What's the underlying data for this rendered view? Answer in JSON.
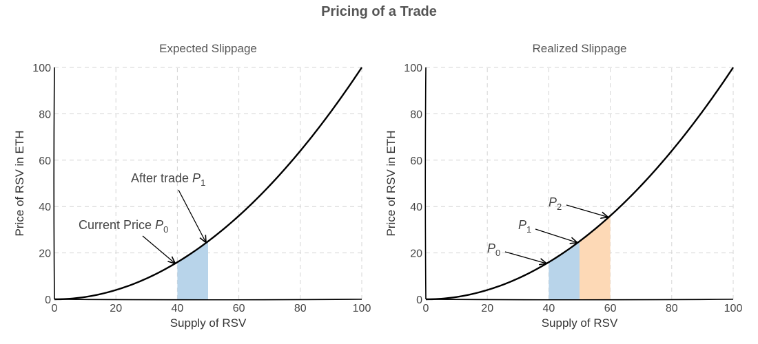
{
  "figure": {
    "title": "Pricing of a Trade"
  },
  "chart_data": [
    {
      "type": "line",
      "title": "Expected Slippage",
      "xlabel": "Supply of RSV",
      "ylabel": "Price of RSV in ETH",
      "xlim": [
        0,
        100
      ],
      "ylim": [
        0,
        100
      ],
      "xticks": [
        "0",
        "20",
        "40",
        "60",
        "80",
        "100"
      ],
      "yticks": [
        "0",
        "20",
        "40",
        "60",
        "80",
        "100"
      ],
      "grid": true,
      "series": [
        {
          "function": "y = x^2 / 100",
          "x": [
            0,
            10,
            20,
            30,
            40,
            50,
            60,
            70,
            80,
            90,
            100
          ],
          "values": [
            0,
            1,
            4,
            9,
            16,
            25,
            36,
            49,
            64,
            81,
            100
          ]
        }
      ],
      "shaded_regions": [
        {
          "x_from": 40,
          "x_to": 50,
          "color": "#b8d4ea"
        }
      ],
      "annotations": [
        {
          "label": "Current Price ",
          "symbol": "P",
          "sub": "0",
          "point": [
            40,
            16
          ]
        },
        {
          "label": "After trade ",
          "symbol": "P",
          "sub": "1",
          "point": [
            50,
            25
          ]
        }
      ]
    },
    {
      "type": "line",
      "title": "Realized Slippage",
      "xlabel": "Supply of RSV",
      "ylabel": "Price of RSV in ETH",
      "xlim": [
        0,
        100
      ],
      "ylim": [
        0,
        100
      ],
      "xticks": [
        "0",
        "20",
        "40",
        "60",
        "80",
        "100"
      ],
      "yticks": [
        "0",
        "20",
        "40",
        "60",
        "80",
        "100"
      ],
      "grid": true,
      "series": [
        {
          "function": "y = x^2 / 100",
          "x": [
            0,
            10,
            20,
            30,
            40,
            50,
            60,
            70,
            80,
            90,
            100
          ],
          "values": [
            0,
            1,
            4,
            9,
            16,
            25,
            36,
            49,
            64,
            81,
            100
          ]
        }
      ],
      "shaded_regions": [
        {
          "x_from": 40,
          "x_to": 50,
          "color": "#b8d4ea"
        },
        {
          "x_from": 50,
          "x_to": 60,
          "color": "#fdd9b6"
        }
      ],
      "annotations": [
        {
          "label": "",
          "symbol": "P",
          "sub": "0",
          "point": [
            40,
            16
          ]
        },
        {
          "label": "",
          "symbol": "P",
          "sub": "1",
          "point": [
            50,
            25
          ]
        },
        {
          "label": "",
          "symbol": "P",
          "sub": "2",
          "point": [
            60,
            36
          ]
        }
      ]
    }
  ]
}
